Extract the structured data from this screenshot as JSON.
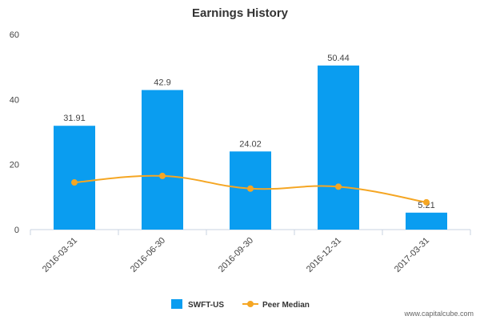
{
  "chart_data": {
    "type": "bar",
    "title": "Earnings History",
    "xlabel": "",
    "ylabel": "",
    "categories": [
      "2016-03-31",
      "2016-06-30",
      "2016-09-30",
      "2016-12-31",
      "2017-03-31"
    ],
    "ylim": [
      0,
      60
    ],
    "yticks": [
      0,
      20,
      40,
      60
    ],
    "grid": false,
    "legend_position": "bottom-center",
    "series": [
      {
        "name": "SWFT-US",
        "type": "bar",
        "color": "#0a9df0",
        "values": [
          31.91,
          42.9,
          24.02,
          50.44,
          5.21
        ],
        "labels": [
          "31.91",
          "42.9",
          "24.02",
          "50.44",
          "5.21"
        ]
      },
      {
        "name": "Peer Median",
        "type": "line",
        "smooth": true,
        "color": "#f5a623",
        "values": [
          14.5,
          16.5,
          12.6,
          13.2,
          8.4
        ]
      }
    ]
  },
  "watermark": "www.capitalcube.com"
}
